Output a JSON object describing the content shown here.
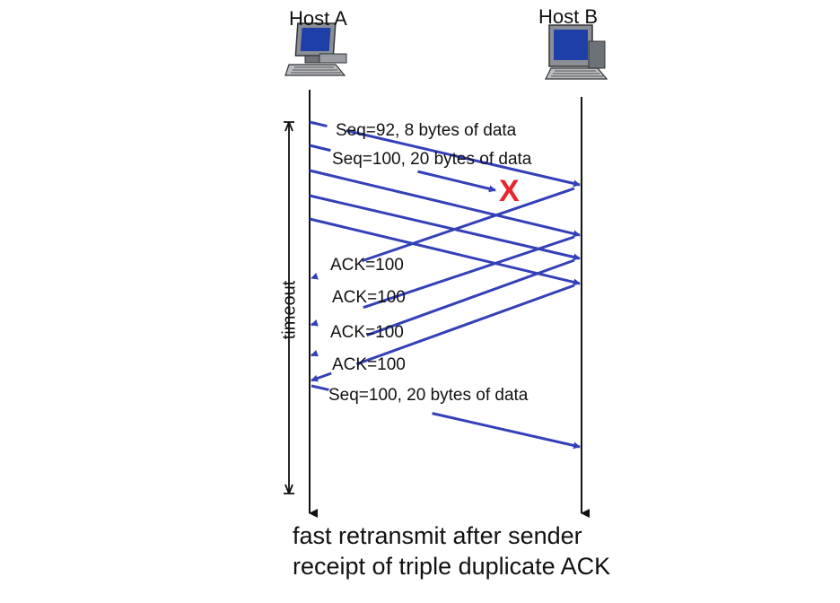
{
  "hosts": {
    "a": {
      "label": "Host A",
      "icon": "computer-icon"
    },
    "b": {
      "label": "Host B",
      "icon": "computer-icon"
    }
  },
  "messages": {
    "seq92": "Seq=92, 8 bytes of data",
    "seq100": "Seq=100, 20 bytes of data",
    "ack1": "ACK=100",
    "ack2": "ACK=100",
    "ack3": "ACK=100",
    "ack4": "ACK=100",
    "retransmit": "Seq=100, 20 bytes of data"
  },
  "loss_marker": {
    "symbol": "X",
    "color": "#e8262b"
  },
  "timeout_label": "timeout",
  "caption": {
    "line1": "fast retransmit after sender",
    "line2": "receipt of triple duplicate ACK"
  },
  "colors": {
    "arrow": "#3340b8",
    "timeline": "#111111",
    "loss": "#e8262b"
  }
}
